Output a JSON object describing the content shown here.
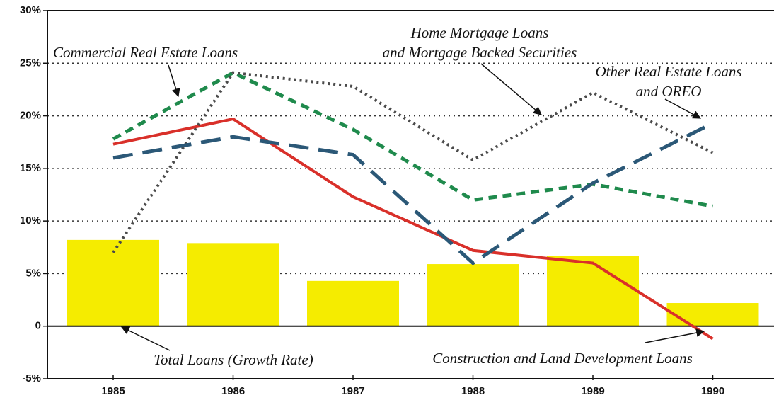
{
  "chart_data": {
    "type": "bar-line",
    "categories": [
      "1985",
      "1986",
      "1987",
      "1988",
      "1989",
      "1990"
    ],
    "ylim": [
      -5,
      30
    ],
    "yticks": [
      {
        "value": 30,
        "label": "30%"
      },
      {
        "value": 25,
        "label": "25%"
      },
      {
        "value": 20,
        "label": "20%"
      },
      {
        "value": 15,
        "label": "15%"
      },
      {
        "value": 10,
        "label": "10%"
      },
      {
        "value": 5,
        "label": "5%"
      },
      0,
      {
        "value": -5,
        "label": "-5%"
      }
    ],
    "grid": true,
    "bars": {
      "color": "#f5ec00",
      "values": [
        8.2,
        7.9,
        4.3,
        5.9,
        6.7,
        2.2
      ]
    },
    "series": [
      {
        "color": "#d9302a",
        "style": "solid",
        "values": [
          17.3,
          19.7,
          12.3,
          7.2,
          6.0,
          -1.2
        ]
      },
      {
        "color": "#1f8a4c",
        "style": "short-dash",
        "values": [
          17.8,
          24.1,
          18.7,
          12.0,
          13.5,
          11.4
        ]
      },
      {
        "color": "#4a4a4a",
        "style": "dotted",
        "values": [
          7.0,
          24.1,
          22.8,
          15.8,
          22.2,
          16.5
        ]
      },
      {
        "color": "#2b5877",
        "style": "long-dash",
        "values": [
          16.0,
          18.0,
          16.3,
          6.0,
          13.6,
          19.3
        ]
      }
    ],
    "annotations": [
      {
        "lines": [
          "Total Loans (Growth Rate)"
        ]
      },
      {
        "lines": [
          "Construction and Land Development Loans"
        ]
      },
      {
        "lines": [
          "Commercial Real Estate Loans"
        ]
      },
      {
        "lines": [
          "Home Mortgage Loans",
          "and Mortgage Backed Securities"
        ]
      },
      {
        "lines": [
          "Other Real Estate Loans",
          "and OREO"
        ]
      }
    ]
  }
}
